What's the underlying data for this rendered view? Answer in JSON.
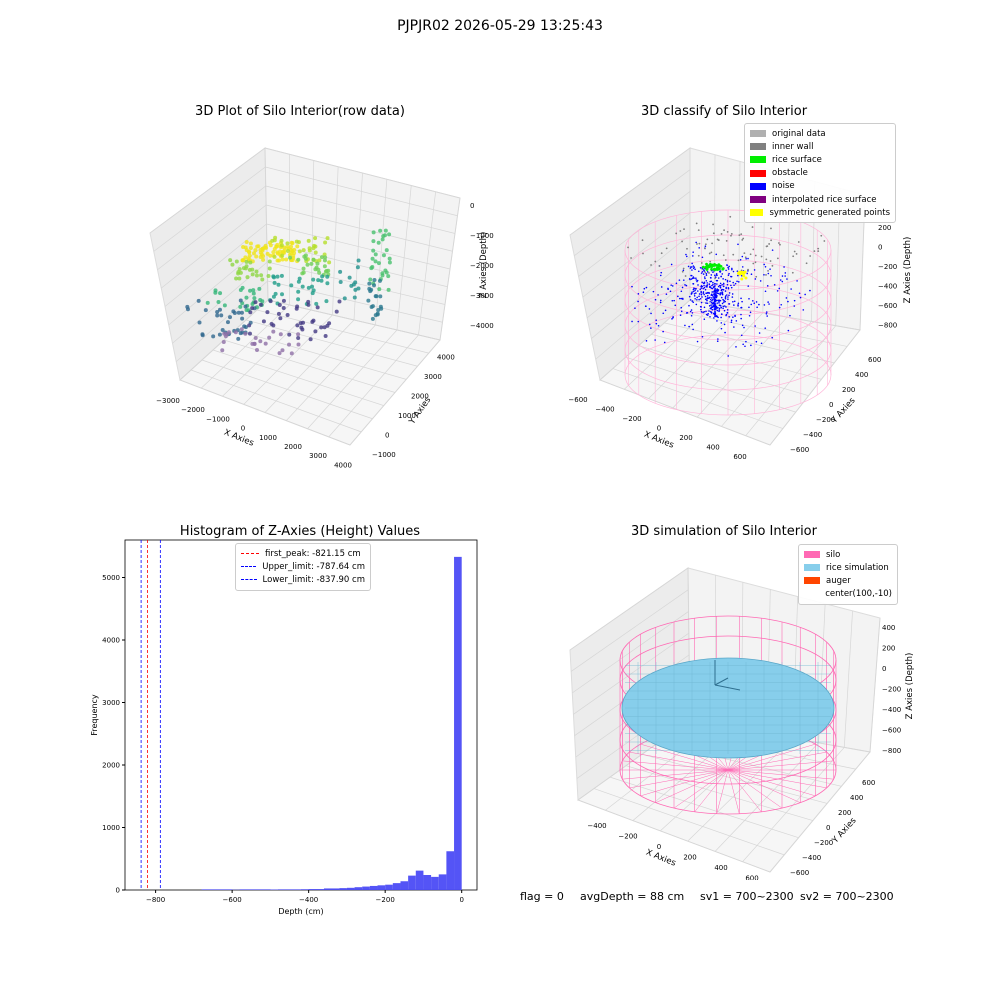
{
  "suptitle": "PJPJR02 2026-05-29 13:25:43",
  "colors": {
    "original_data": "#b0b0b0",
    "inner_wall": "#808080",
    "rice_surface": "#00ee00",
    "obstacle": "#ff0000",
    "noise": "#0000ff",
    "interpolated_rice_surface": "#800080",
    "symmetric_generated_points": "#ffff00",
    "silo": "#ff69b4",
    "rice_simulation": "#87ceeb",
    "auger": "#ff4500",
    "hist_bar": "#4b4bf5"
  },
  "flags": {
    "flag": "flag = 0",
    "avgDepth": "avgDepth = 88 cm",
    "sv1": "sv1 = 700~2300",
    "sv2": "sv2 = 700~2300"
  },
  "chart_data": [
    {
      "type": "scatter",
      "subtype": "3d",
      "title": "3D Plot of Silo Interior(row data)",
      "xlabel": "X Axies",
      "ylabel": "Y Axies",
      "zlabel": "Z Axies (Depth)",
      "x_ticks": [
        "−3000",
        "−2000",
        "−1000",
        "0",
        "1000",
        "2000",
        "3000",
        "4000"
      ],
      "y_ticks": [
        "−1000",
        "0",
        "1000",
        "2000",
        "3000",
        "4000"
      ],
      "z_ticks": [
        "0",
        "−1000",
        "−2000",
        "−3000",
        "−4000"
      ],
      "xlim": [
        -3500,
        4500
      ],
      "ylim": [
        -1000,
        4500
      ],
      "zlim": [
        -4500,
        0
      ],
      "colormap": "viridis by depth",
      "grid": true
    },
    {
      "type": "scatter",
      "subtype": "3d",
      "title": "3D classify of Silo Interior",
      "xlabel": "X Axies",
      "ylabel": "Y Axies",
      "zlabel": "Z Axies (Depth)",
      "x_ticks": [
        "−600",
        "−400",
        "−200",
        "0",
        "200",
        "400",
        "600"
      ],
      "y_ticks": [
        "−600",
        "−400",
        "−200",
        "0",
        "200",
        "400",
        "600"
      ],
      "z_ticks": [
        "200",
        "0",
        "−200",
        "−400",
        "−600",
        "−800"
      ],
      "legend": [
        "original data",
        "inner wall",
        "rice surface",
        "obstacle",
        "noise",
        "interpolated rice surface",
        "symmetric generated points"
      ],
      "legend_position": "top-right",
      "grid": true
    },
    {
      "type": "bar",
      "subtype": "histogram",
      "title": "Histogram of Z-Axies (Height) Values",
      "xlabel": "Depth (cm)",
      "ylabel": "Frequency",
      "xlim": [
        -880,
        40
      ],
      "ylim": [
        0,
        5600
      ],
      "x_ticks": [
        -800,
        -600,
        -400,
        -200,
        0
      ],
      "x_tick_labels": [
        "−800",
        "−600",
        "−400",
        "−200",
        "0"
      ],
      "y_ticks": [
        0,
        1000,
        2000,
        3000,
        4000,
        5000
      ],
      "bins": [
        {
          "x0": -680,
          "x1": -600,
          "count": 10
        },
        {
          "x0": -600,
          "x1": -580,
          "count": 5
        },
        {
          "x0": -580,
          "x1": -500,
          "count": 10
        },
        {
          "x0": -500,
          "x1": -480,
          "count": 8
        },
        {
          "x0": -480,
          "x1": -420,
          "count": 10
        },
        {
          "x0": -420,
          "x1": -400,
          "count": 12
        },
        {
          "x0": -400,
          "x1": -360,
          "count": 15
        },
        {
          "x0": -360,
          "x1": -320,
          "count": 25
        },
        {
          "x0": -320,
          "x1": -300,
          "count": 30
        },
        {
          "x0": -300,
          "x1": -280,
          "count": 35
        },
        {
          "x0": -280,
          "x1": -260,
          "count": 45
        },
        {
          "x0": -260,
          "x1": -240,
          "count": 55
        },
        {
          "x0": -240,
          "x1": -220,
          "count": 65
        },
        {
          "x0": -220,
          "x1": -200,
          "count": 75
        },
        {
          "x0": -200,
          "x1": -180,
          "count": 85
        },
        {
          "x0": -180,
          "x1": -160,
          "count": 110
        },
        {
          "x0": -160,
          "x1": -140,
          "count": 140
        },
        {
          "x0": -140,
          "x1": -120,
          "count": 230
        },
        {
          "x0": -120,
          "x1": -100,
          "count": 310
        },
        {
          "x0": -100,
          "x1": -80,
          "count": 240
        },
        {
          "x0": -80,
          "x1": -60,
          "count": 210
        },
        {
          "x0": -60,
          "x1": -40,
          "count": 250
        },
        {
          "x0": -40,
          "x1": -20,
          "count": 620
        },
        {
          "x0": -20,
          "x1": 0,
          "count": 5330
        }
      ],
      "vlines": [
        {
          "label": "first_peak: -821.15 cm",
          "x": -821.15,
          "color": "#ff0000"
        },
        {
          "label": "Upper_limit: -787.64 cm",
          "x": -787.64,
          "color": "#0000ff"
        },
        {
          "label": "Lower_limit: -837.90 cm",
          "x": -837.9,
          "color": "#0000ff"
        }
      ],
      "legend_position": "top-center"
    },
    {
      "type": "scatter",
      "subtype": "3d",
      "title": "3D simulation of Silo Interior",
      "xlabel": "X Axies",
      "ylabel": "Y Axies",
      "zlabel": "Z Axies (Depth)",
      "x_ticks": [
        "−400",
        "−200",
        "0",
        "200",
        "400",
        "600"
      ],
      "y_ticks": [
        "−600",
        "−400",
        "−200",
        "0",
        "200",
        "400",
        "600"
      ],
      "z_ticks": [
        "400",
        "200",
        "0",
        "−200",
        "−400",
        "−600",
        "−800"
      ],
      "legend": [
        "silo",
        "rice simulation",
        "auger",
        "center(100,-10)"
      ],
      "legend_position": "top-right",
      "grid": true
    }
  ]
}
